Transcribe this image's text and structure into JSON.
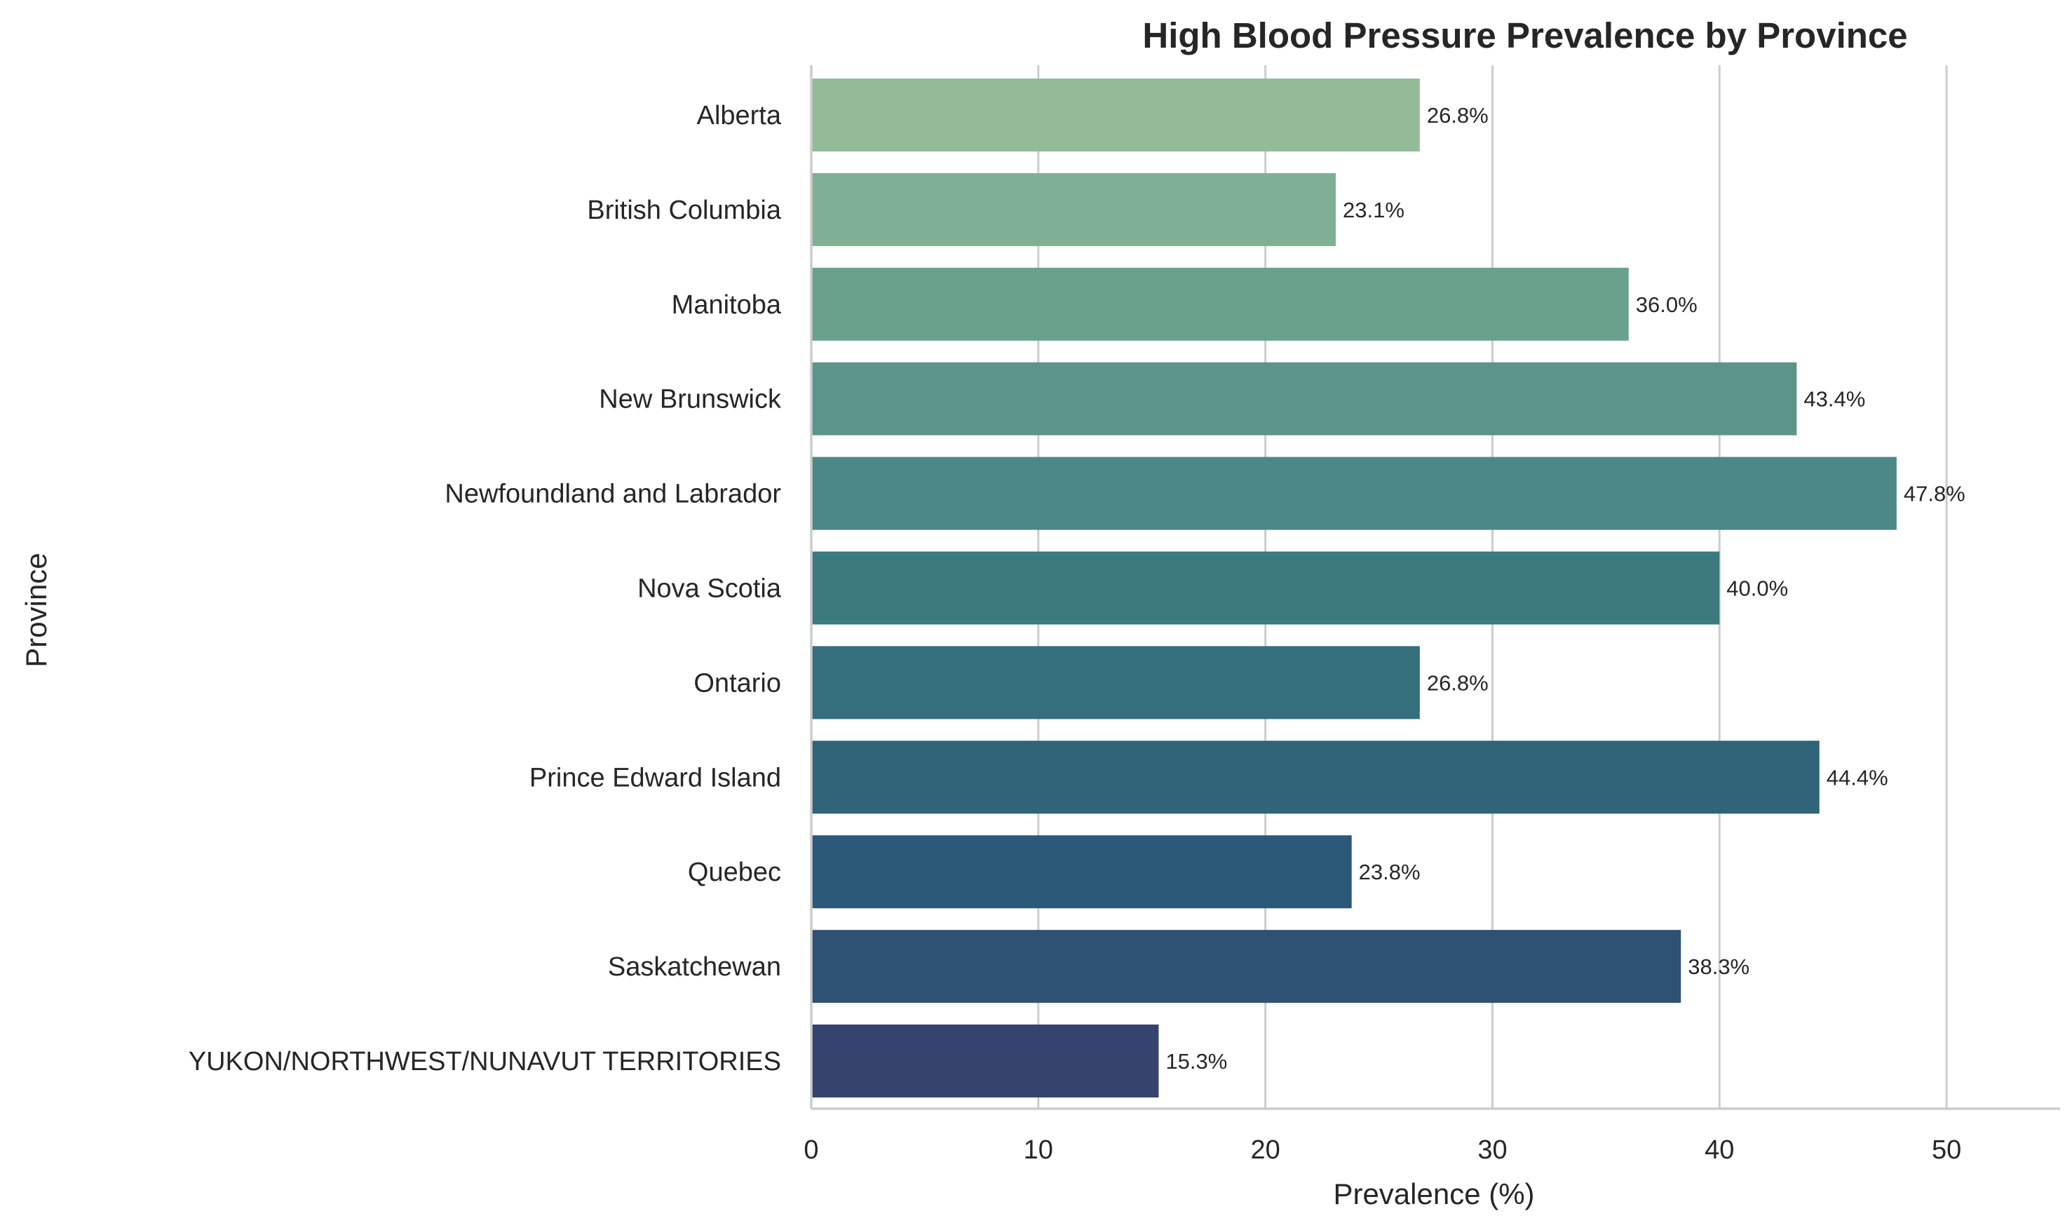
{
  "chart_data": {
    "type": "bar",
    "orientation": "horizontal",
    "title": "High Blood Pressure Prevalence by Province",
    "xlabel": "Prevalence (%)",
    "ylabel": "Province",
    "xlim": [
      0,
      55
    ],
    "xticks": [
      0,
      10,
      20,
      30,
      40,
      50
    ],
    "grid": "vertical",
    "categories": [
      "Alberta",
      "British Columbia",
      "Manitoba",
      "New Brunswick",
      "Newfoundland and Labrador",
      "Nova Scotia",
      "Ontario",
      "Prince Edward Island",
      "Quebec",
      "Saskatchewan",
      "YUKON/NORTHWEST/NUNAVUT TERRITORIES"
    ],
    "values": [
      26.8,
      23.1,
      36.0,
      43.4,
      47.8,
      40.0,
      26.8,
      44.4,
      23.8,
      38.3,
      15.3
    ],
    "value_labels": [
      "26.8%",
      "23.1%",
      "36.0%",
      "43.4%",
      "47.8%",
      "40.0%",
      "26.8%",
      "44.4%",
      "23.8%",
      "38.3%",
      "15.3%"
    ],
    "colors": [
      "#94bb98",
      "#80b094",
      "#6aa18d",
      "#5b958a",
      "#4c8886",
      "#3d7a80",
      "#356f7c",
      "#2f6479",
      "#2c5879",
      "#2f5174",
      "#35436e"
    ]
  }
}
